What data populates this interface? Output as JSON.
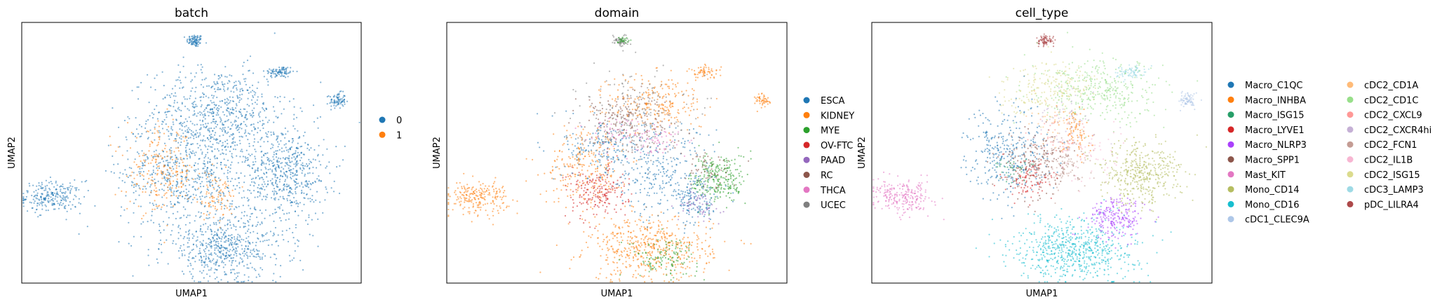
{
  "chart_data": [
    {
      "type": "scatter",
      "title": "batch",
      "xlabel": "UMAP1",
      "ylabel": "UMAP2",
      "xlim": [
        0,
        10
      ],
      "ylim": [
        0,
        10
      ],
      "grid": false,
      "legend": "right",
      "legend_columns": 1,
      "series": [
        {
          "name": "0",
          "color": "#1f77b4"
        },
        {
          "name": "1",
          "color": "#ff7f0e"
        }
      ],
      "clusters": [
        {
          "series": "0",
          "x": 5.1,
          "y": 9.3,
          "sx": 0.12,
          "sy": 0.12,
          "n": 90
        },
        {
          "series": "0",
          "x": 7.6,
          "y": 8.1,
          "sx": 0.22,
          "sy": 0.12,
          "n": 90
        },
        {
          "series": "0",
          "x": 9.3,
          "y": 7.0,
          "sx": 0.12,
          "sy": 0.15,
          "n": 80
        },
        {
          "series": "0",
          "x": 0.9,
          "y": 3.3,
          "sx": 0.45,
          "sy": 0.3,
          "n": 240
        },
        {
          "series": "0",
          "x": 5.8,
          "y": 6.5,
          "sx": 1.0,
          "sy": 0.9,
          "n": 650
        },
        {
          "series": "0",
          "x": 4.9,
          "y": 4.2,
          "sx": 1.0,
          "sy": 1.1,
          "n": 650
        },
        {
          "series": "0",
          "x": 7.8,
          "y": 4.2,
          "sx": 0.6,
          "sy": 0.9,
          "n": 550
        },
        {
          "series": "0",
          "x": 6.0,
          "y": 1.3,
          "sx": 0.9,
          "sy": 0.6,
          "n": 550
        },
        {
          "series": "1",
          "x": 4.1,
          "y": 4.3,
          "sx": 0.5,
          "sy": 0.8,
          "n": 220
        },
        {
          "series": "1",
          "x": 5.7,
          "y": 3.3,
          "sx": 0.35,
          "sy": 0.45,
          "n": 90
        }
      ]
    },
    {
      "type": "scatter",
      "title": "domain",
      "xlabel": "UMAP1",
      "ylabel": "UMAP2",
      "xlim": [
        0,
        10
      ],
      "ylim": [
        0,
        10
      ],
      "grid": false,
      "legend": "right",
      "legend_columns": 1,
      "series": [
        {
          "name": "ESCA",
          "color": "#1f77b4"
        },
        {
          "name": "KIDNEY",
          "color": "#ff7f0e"
        },
        {
          "name": "MYE",
          "color": "#2ca02c"
        },
        {
          "name": "OV-FTC",
          "color": "#d62728"
        },
        {
          "name": "PAAD",
          "color": "#9467bd"
        },
        {
          "name": "RC",
          "color": "#8c564b"
        },
        {
          "name": "THCA",
          "color": "#e377c2"
        },
        {
          "name": "UCEC",
          "color": "#7f7f7f"
        }
      ],
      "clusters": [
        {
          "series": "KIDNEY",
          "x": 0.9,
          "y": 3.3,
          "sx": 0.45,
          "sy": 0.3,
          "n": 220
        },
        {
          "series": "UCEC",
          "x": 5.1,
          "y": 9.3,
          "sx": 0.12,
          "sy": 0.12,
          "n": 60
        },
        {
          "series": "MYE",
          "x": 5.2,
          "y": 9.3,
          "sx": 0.08,
          "sy": 0.08,
          "n": 25
        },
        {
          "series": "KIDNEY",
          "x": 7.6,
          "y": 8.1,
          "sx": 0.22,
          "sy": 0.12,
          "n": 60
        },
        {
          "series": "KIDNEY",
          "x": 9.3,
          "y": 7.0,
          "sx": 0.12,
          "sy": 0.15,
          "n": 50
        },
        {
          "series": "KIDNEY",
          "x": 6.0,
          "y": 1.3,
          "sx": 0.9,
          "sy": 0.6,
          "n": 520
        },
        {
          "series": "MYE",
          "x": 6.4,
          "y": 1.0,
          "sx": 0.5,
          "sy": 0.35,
          "n": 120
        },
        {
          "series": "KIDNEY",
          "x": 4.1,
          "y": 4.5,
          "sx": 0.6,
          "sy": 0.8,
          "n": 260
        },
        {
          "series": "OV-FTC",
          "x": 4.4,
          "y": 3.5,
          "sx": 0.45,
          "sy": 0.5,
          "n": 200
        },
        {
          "series": "ESCA",
          "x": 4.6,
          "y": 5.2,
          "sx": 0.6,
          "sy": 0.6,
          "n": 160
        },
        {
          "series": "KIDNEY",
          "x": 6.2,
          "y": 6.9,
          "sx": 0.7,
          "sy": 0.6,
          "n": 240
        },
        {
          "series": "UCEC",
          "x": 5.4,
          "y": 6.5,
          "sx": 0.8,
          "sy": 0.8,
          "n": 220
        },
        {
          "series": "RC",
          "x": 5.2,
          "y": 6.2,
          "sx": 0.7,
          "sy": 0.6,
          "n": 160
        },
        {
          "series": "THCA",
          "x": 4.9,
          "y": 5.8,
          "sx": 0.4,
          "sy": 0.3,
          "n": 50
        },
        {
          "series": "ESCA",
          "x": 6.2,
          "y": 4.3,
          "sx": 0.8,
          "sy": 0.9,
          "n": 260
        },
        {
          "series": "MYE",
          "x": 8.0,
          "y": 4.0,
          "sx": 0.4,
          "sy": 0.5,
          "n": 260
        },
        {
          "series": "ESCA",
          "x": 7.3,
          "y": 3.2,
          "sx": 0.35,
          "sy": 0.5,
          "n": 140
        },
        {
          "series": "PAAD",
          "x": 7.4,
          "y": 3.0,
          "sx": 0.3,
          "sy": 0.3,
          "n": 60
        },
        {
          "series": "RC",
          "x": 7.6,
          "y": 4.4,
          "sx": 0.4,
          "sy": 0.4,
          "n": 60
        },
        {
          "series": "THCA",
          "x": 6.2,
          "y": 5.5,
          "sx": 0.3,
          "sy": 0.3,
          "n": 60
        }
      ]
    },
    {
      "type": "scatter",
      "title": "cell_type",
      "xlabel": "UMAP1",
      "ylabel": "UMAP2",
      "xlim": [
        0,
        10
      ],
      "ylim": [
        0,
        10
      ],
      "grid": false,
      "legend": "right",
      "legend_columns": 2,
      "series": [
        {
          "name": "Macro_C1QC",
          "color": "#1f77b4"
        },
        {
          "name": "Macro_INHBA",
          "color": "#ff7f0e"
        },
        {
          "name": "Macro_ISG15",
          "color": "#279e68"
        },
        {
          "name": "Macro_LYVE1",
          "color": "#d62728"
        },
        {
          "name": "Macro_NLRP3",
          "color": "#aa40fc"
        },
        {
          "name": "Macro_SPP1",
          "color": "#8c564b"
        },
        {
          "name": "Mast_KIT",
          "color": "#e377c2"
        },
        {
          "name": "Mono_CD14",
          "color": "#b5bd61"
        },
        {
          "name": "Mono_CD16",
          "color": "#17becf"
        },
        {
          "name": "cDC1_CLEC9A",
          "color": "#aec7e8"
        },
        {
          "name": "cDC2_CD1A",
          "color": "#ffbb78"
        },
        {
          "name": "cDC2_CD1C",
          "color": "#98df8a"
        },
        {
          "name": "cDC2_CXCL9",
          "color": "#ff9896"
        },
        {
          "name": "cDC2_CXCR4hi",
          "color": "#c5b0d5"
        },
        {
          "name": "cDC2_FCN1",
          "color": "#c49c94"
        },
        {
          "name": "cDC2_IL1B",
          "color": "#f7b6d2"
        },
        {
          "name": "cDC2_ISG15",
          "color": "#dbdb8d"
        },
        {
          "name": "cDC3_LAMP3",
          "color": "#9edae5"
        },
        {
          "name": "pDC_LILRA4",
          "color": "#ad494a"
        }
      ],
      "clusters": [
        {
          "series": "Mast_KIT",
          "x": 0.9,
          "y": 3.3,
          "sx": 0.45,
          "sy": 0.3,
          "n": 240
        },
        {
          "series": "pDC_LILRA4",
          "x": 5.1,
          "y": 9.3,
          "sx": 0.12,
          "sy": 0.12,
          "n": 80
        },
        {
          "series": "cDC3_LAMP3",
          "x": 7.6,
          "y": 8.1,
          "sx": 0.22,
          "sy": 0.12,
          "n": 80
        },
        {
          "series": "cDC1_CLEC9A",
          "x": 9.3,
          "y": 7.0,
          "sx": 0.12,
          "sy": 0.15,
          "n": 70
        },
        {
          "series": "Mono_CD16",
          "x": 6.0,
          "y": 1.3,
          "sx": 0.9,
          "sy": 0.6,
          "n": 650
        },
        {
          "series": "Macro_NLRP3",
          "x": 7.2,
          "y": 2.5,
          "sx": 0.4,
          "sy": 0.4,
          "n": 220
        },
        {
          "series": "Mono_CD14",
          "x": 7.9,
          "y": 4.2,
          "sx": 0.6,
          "sy": 0.6,
          "n": 420
        },
        {
          "series": "cDC2_CD1C",
          "x": 6.8,
          "y": 7.3,
          "sx": 0.9,
          "sy": 0.6,
          "n": 360
        },
        {
          "series": "cDC2_ISG15",
          "x": 5.2,
          "y": 7.5,
          "sx": 0.7,
          "sy": 0.5,
          "n": 220
        },
        {
          "series": "Macro_C1QC",
          "x": 4.0,
          "y": 5.0,
          "sx": 0.6,
          "sy": 0.9,
          "n": 320
        },
        {
          "series": "Macro_SPP1",
          "x": 4.8,
          "y": 4.6,
          "sx": 0.5,
          "sy": 0.6,
          "n": 180
        },
        {
          "series": "Macro_LYVE1",
          "x": 4.7,
          "y": 4.0,
          "sx": 0.35,
          "sy": 0.4,
          "n": 100
        },
        {
          "series": "Macro_INHBA",
          "x": 6.0,
          "y": 5.8,
          "sx": 0.2,
          "sy": 0.5,
          "n": 80
        },
        {
          "series": "cDC2_FCN1",
          "x": 5.6,
          "y": 4.6,
          "sx": 0.5,
          "sy": 0.5,
          "n": 120
        },
        {
          "series": "Macro_ISG15",
          "x": 4.2,
          "y": 4.4,
          "sx": 0.3,
          "sy": 0.3,
          "n": 40
        },
        {
          "series": "cDC2_IL1B",
          "x": 6.4,
          "y": 4.9,
          "sx": 0.5,
          "sy": 0.5,
          "n": 60
        },
        {
          "series": "cDC2_CXCR4hi",
          "x": 5.8,
          "y": 6.3,
          "sx": 0.5,
          "sy": 0.5,
          "n": 60
        },
        {
          "series": "cDC2_CD1A",
          "x": 5.4,
          "y": 6.2,
          "sx": 0.4,
          "sy": 0.4,
          "n": 40
        },
        {
          "series": "cDC2_CXCL9",
          "x": 5.5,
          "y": 5.6,
          "sx": 0.4,
          "sy": 0.4,
          "n": 40
        }
      ]
    }
  ]
}
